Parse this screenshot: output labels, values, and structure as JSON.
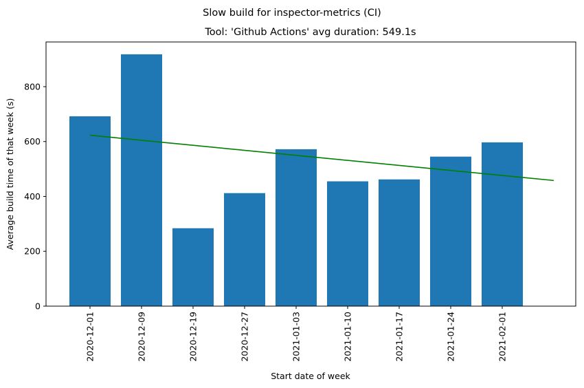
{
  "chart_data": {
    "type": "bar",
    "suptitle": "Slow build for inspector-metrics (CI)",
    "title": "Tool: 'Github Actions' avg duration: 549.1s",
    "xlabel": "Start date of week",
    "ylabel": "Average build time of that week (s)",
    "categories": [
      "2020-12-01",
      "2020-12-09",
      "2020-12-19",
      "2020-12-27",
      "2021-01-03",
      "2021-01-10",
      "2021-01-17",
      "2021-01-24",
      "2021-02-01"
    ],
    "values": [
      692,
      918,
      284,
      412,
      572,
      455,
      462,
      545,
      597
    ],
    "bar_color": "#1f77b4",
    "trend": {
      "color": "#008000",
      "start": 623,
      "end": 458
    },
    "ylim": [
      0,
      963
    ],
    "yticks": [
      0,
      200,
      400,
      600,
      800
    ],
    "grid": false
  }
}
